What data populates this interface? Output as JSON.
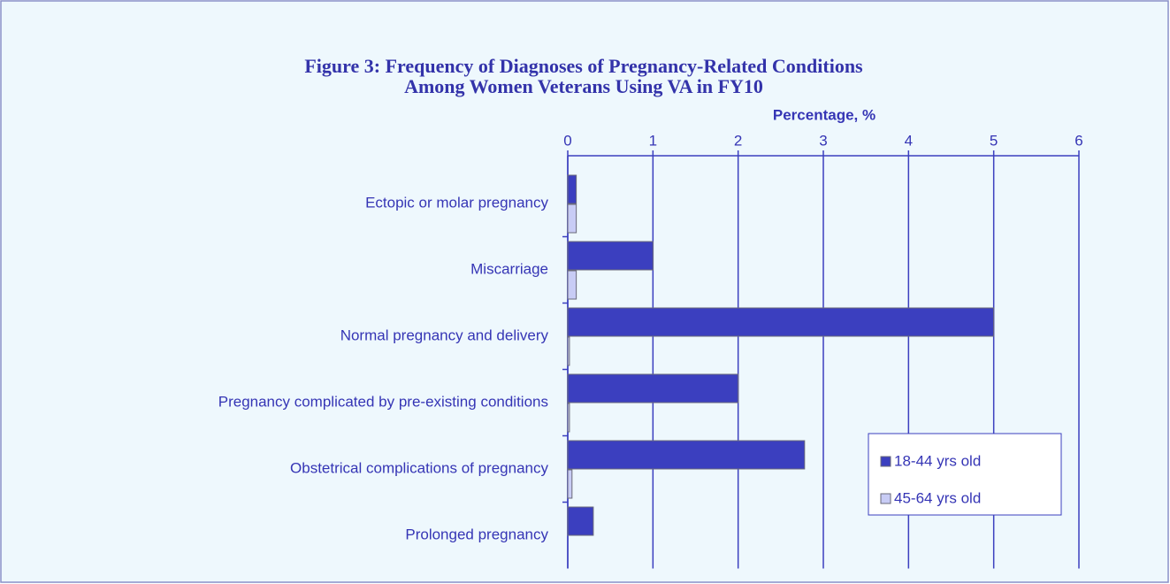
{
  "chart_data": {
    "type": "hbar",
    "title": [
      "Figure 3: Frequency of Diagnoses of Pregnancy-Related Conditions",
      "Among Women Veterans Using VA in FY10"
    ],
    "x_label": "Percentage, %",
    "categories": [
      "Ectopic or molar pregnancy",
      "Miscarriage",
      "Normal pregnancy and delivery",
      "Pregnancy complicated by pre-existing conditions",
      "Obstetrical complications of pregnancy",
      "Prolonged pregnancy"
    ],
    "series": [
      {
        "name": "18-44 yrs old",
        "color": "#3b3fbf",
        "values": [
          0.1,
          1.0,
          5.0,
          2.0,
          2.78,
          0.3
        ]
      },
      {
        "name": "45-64 yrs old",
        "color": "#c8ccf5",
        "values": [
          0.1,
          0.1,
          0.02,
          0.02,
          0.05,
          0
        ]
      }
    ],
    "xlim": [
      0,
      6
    ],
    "xticks": [
      0,
      1,
      2,
      3,
      4,
      5,
      6
    ],
    "grid": true,
    "legend": "lower right"
  }
}
